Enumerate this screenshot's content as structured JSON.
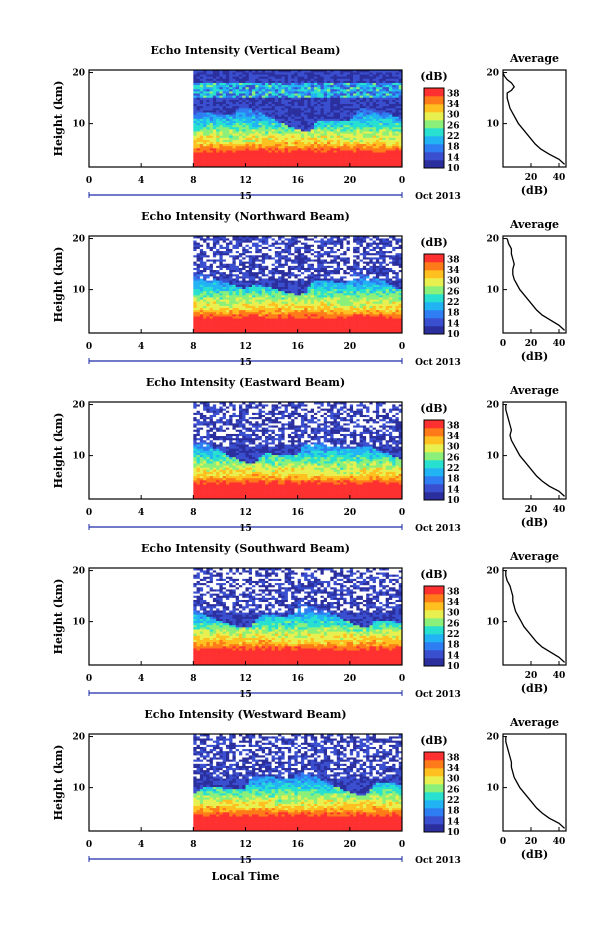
{
  "figure": {
    "x_axis_label": "Local Time",
    "date_label": "Oct 2013",
    "day_label": "15",
    "height_label": "Height (km)",
    "average_title": "Average",
    "average_xlabel": "(dB)",
    "colorbar_label": "(dB)"
  },
  "colors": {
    "scale": [
      "#2b2f9e",
      "#3a4fd0",
      "#2f7df2",
      "#22b3f5",
      "#28e0d0",
      "#8af07a",
      "#e8f050",
      "#ffc020",
      "#ff7a18",
      "#ff3030"
    ],
    "noise": "#ffffff",
    "axis": "#000000",
    "day_marker": "#1a2aa8"
  },
  "chart_data": [
    {
      "type": "heatmap",
      "title": "Echo Intensity (Vertical Beam)",
      "xlabel": "Local Time",
      "ylabel": "Height (km)",
      "x_ticks": [
        "0",
        "4",
        "8",
        "12",
        "16",
        "20",
        "0"
      ],
      "y_ticks": [
        "20",
        "10"
      ],
      "xlim": [
        0,
        24
      ],
      "ylim": [
        1.5,
        20.5
      ],
      "data_start_hour": 8,
      "colorbar": {
        "label": "(dB)",
        "ticks": [
          "38",
          "34",
          "30",
          "26",
          "22",
          "18",
          "14",
          "10"
        ],
        "range": [
          10,
          40
        ]
      },
      "profile": {
        "title": "Average",
        "xlabel": "(dB)",
        "x_ticks": [
          "20",
          "40"
        ],
        "xlim": [
          0,
          45
        ],
        "y_ticks": [
          "20",
          "10"
        ],
        "points": [
          [
            44,
            2
          ],
          [
            40,
            3
          ],
          [
            33,
            4
          ],
          [
            27,
            5
          ],
          [
            23,
            6
          ],
          [
            20,
            7
          ],
          [
            17,
            8
          ],
          [
            14,
            9
          ],
          [
            11,
            10
          ],
          [
            9,
            11
          ],
          [
            7,
            12
          ],
          [
            5,
            13
          ],
          [
            4,
            14
          ],
          [
            3,
            15
          ],
          [
            3,
            16
          ],
          [
            6,
            16.5
          ],
          [
            8,
            17.2
          ],
          [
            6,
            18
          ],
          [
            3,
            18.6
          ],
          [
            1,
            19.3
          ],
          [
            0,
            20
          ]
        ]
      },
      "noise_fraction": 0.0
    },
    {
      "type": "heatmap",
      "title": "Echo Intensity (Northward Beam)",
      "xlabel": "Local Time",
      "ylabel": "Height (km)",
      "x_ticks": [
        "0",
        "4",
        "8",
        "12",
        "16",
        "20",
        "0"
      ],
      "y_ticks": [
        "20",
        "10"
      ],
      "xlim": [
        0,
        24
      ],
      "ylim": [
        1.5,
        20.5
      ],
      "data_start_hour": 8,
      "colorbar": {
        "label": "(dB)",
        "ticks": [
          "38",
          "34",
          "30",
          "26",
          "22",
          "18",
          "14",
          "10"
        ],
        "range": [
          10,
          40
        ]
      },
      "profile": {
        "title": "Average",
        "xlabel": "(dB)",
        "x_ticks": [
          "0",
          "20",
          "40"
        ],
        "xlim": [
          0,
          45
        ],
        "y_ticks": [
          "20",
          "10"
        ],
        "points": [
          [
            44,
            2
          ],
          [
            40,
            3
          ],
          [
            34,
            4
          ],
          [
            28,
            5
          ],
          [
            24,
            6
          ],
          [
            21,
            7
          ],
          [
            18,
            8
          ],
          [
            15,
            9
          ],
          [
            12,
            10
          ],
          [
            10,
            11
          ],
          [
            8,
            12
          ],
          [
            7,
            13
          ],
          [
            7,
            14
          ],
          [
            8,
            15
          ],
          [
            7,
            16
          ],
          [
            6,
            17
          ],
          [
            6,
            18
          ],
          [
            4,
            19
          ],
          [
            3,
            20
          ]
        ]
      },
      "noise_fraction": 0.25
    },
    {
      "type": "heatmap",
      "title": "Echo Intensity (Eastward Beam)",
      "xlabel": "Local Time",
      "ylabel": "Height (km)",
      "x_ticks": [
        "0",
        "4",
        "8",
        "12",
        "16",
        "20",
        "0"
      ],
      "y_ticks": [
        "20",
        "10"
      ],
      "xlim": [
        0,
        24
      ],
      "ylim": [
        1.5,
        20.5
      ],
      "data_start_hour": 8,
      "colorbar": {
        "label": "(dB)",
        "ticks": [
          "38",
          "34",
          "30",
          "26",
          "22",
          "18",
          "14",
          "10"
        ],
        "range": [
          10,
          40
        ]
      },
      "profile": {
        "title": "Average",
        "xlabel": "(dB)",
        "x_ticks": [
          "20",
          "40"
        ],
        "xlim": [
          0,
          45
        ],
        "y_ticks": [
          "20",
          "10"
        ],
        "points": [
          [
            44,
            2
          ],
          [
            40,
            3
          ],
          [
            33,
            4
          ],
          [
            28,
            5
          ],
          [
            24,
            6
          ],
          [
            21,
            7
          ],
          [
            18,
            8
          ],
          [
            15,
            9
          ],
          [
            12,
            10
          ],
          [
            10,
            11
          ],
          [
            8,
            12
          ],
          [
            6,
            13
          ],
          [
            5,
            14
          ],
          [
            6,
            15
          ],
          [
            5,
            16
          ],
          [
            4,
            17
          ],
          [
            3,
            18
          ],
          [
            2,
            19
          ],
          [
            2,
            20
          ]
        ]
      },
      "noise_fraction": 0.3
    },
    {
      "type": "heatmap",
      "title": "Echo Intensity (Southward Beam)",
      "xlabel": "Local Time",
      "ylabel": "Height (km)",
      "x_ticks": [
        "0",
        "4",
        "8",
        "12",
        "16",
        "20",
        "0"
      ],
      "y_ticks": [
        "20",
        "10"
      ],
      "xlim": [
        0,
        24
      ],
      "ylim": [
        1.5,
        20.5
      ],
      "data_start_hour": 8,
      "colorbar": {
        "label": "(dB)",
        "ticks": [
          "38",
          "34",
          "30",
          "26",
          "22",
          "18",
          "14",
          "10"
        ],
        "range": [
          10,
          40
        ]
      },
      "profile": {
        "title": "Average",
        "xlabel": "(dB)",
        "x_ticks": [
          "20",
          "40"
        ],
        "xlim": [
          0,
          45
        ],
        "y_ticks": [
          "20",
          "10"
        ],
        "points": [
          [
            44,
            2
          ],
          [
            40,
            3
          ],
          [
            34,
            4
          ],
          [
            28,
            5
          ],
          [
            24,
            6
          ],
          [
            21,
            7
          ],
          [
            18,
            8
          ],
          [
            15,
            9
          ],
          [
            13,
            10
          ],
          [
            11,
            11
          ],
          [
            9,
            12
          ],
          [
            8,
            13
          ],
          [
            7,
            14
          ],
          [
            7,
            15
          ],
          [
            6,
            16
          ],
          [
            5,
            17
          ],
          [
            3,
            18
          ],
          [
            2,
            19
          ],
          [
            2,
            20
          ]
        ]
      },
      "noise_fraction": 0.3
    },
    {
      "type": "heatmap",
      "title": "Echo Intensity (Westward Beam)",
      "xlabel": "Local Time",
      "ylabel": "Height (km)",
      "x_ticks": [
        "0",
        "4",
        "8",
        "12",
        "16",
        "20",
        "0"
      ],
      "y_ticks": [
        "20",
        "10"
      ],
      "xlim": [
        0,
        24
      ],
      "ylim": [
        1.5,
        20.5
      ],
      "data_start_hour": 8,
      "colorbar": {
        "label": "(dB)",
        "ticks": [
          "38",
          "34",
          "30",
          "26",
          "22",
          "18",
          "14",
          "10"
        ],
        "range": [
          10,
          40
        ]
      },
      "profile": {
        "title": "Average",
        "xlabel": "(dB)",
        "x_ticks": [
          "0",
          "20",
          "40"
        ],
        "xlim": [
          0,
          45
        ],
        "y_ticks": [
          "20",
          "10"
        ],
        "points": [
          [
            44,
            2
          ],
          [
            40,
            3
          ],
          [
            33,
            4
          ],
          [
            28,
            5
          ],
          [
            24,
            6
          ],
          [
            21,
            7
          ],
          [
            18,
            8
          ],
          [
            15,
            9
          ],
          [
            12,
            10
          ],
          [
            10,
            11
          ],
          [
            8,
            12
          ],
          [
            7,
            13
          ],
          [
            6,
            14
          ],
          [
            6,
            15
          ],
          [
            5,
            16
          ],
          [
            4,
            17
          ],
          [
            3,
            18
          ],
          [
            2,
            19
          ],
          [
            2,
            20
          ]
        ]
      },
      "noise_fraction": 0.28
    }
  ]
}
